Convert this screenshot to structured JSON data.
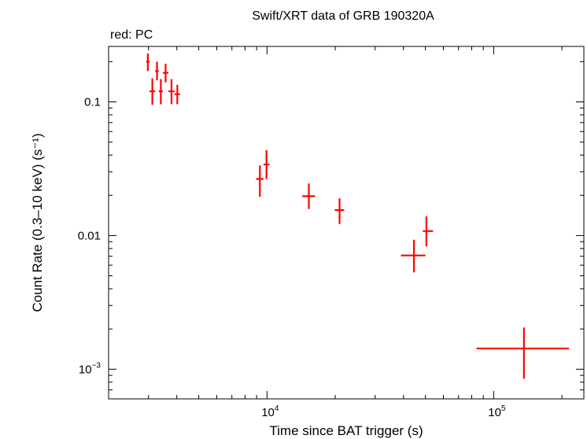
{
  "chart_data": {
    "type": "scatter",
    "title": "Swift/XRT data of GRB 190320A",
    "subtitle": "red: PC",
    "xlabel": "Time since BAT trigger (s)",
    "ylabel": "Count Rate (0.3–10 keV) (s⁻¹)",
    "x_scale": "log",
    "y_scale": "log",
    "xlim": [
      2000,
      250000
    ],
    "ylim": [
      0.0006,
      0.26
    ],
    "x_major_ticks": [
      10000,
      100000
    ],
    "x_tick_labels": [
      "10^4",
      "10^5"
    ],
    "y_major_ticks": [
      0.001,
      0.01,
      0.1
    ],
    "y_tick_labels": [
      "10^-3",
      "0.01",
      "0.1"
    ],
    "grid": false,
    "series": [
      {
        "color": "#ff0000",
        "points": [
          {
            "x": 2980,
            "xlo": 2930,
            "xhi": 3030,
            "y": 0.2,
            "ylo": 0.17,
            "yhi": 0.23
          },
          {
            "x": 3120,
            "xlo": 3030,
            "xhi": 3210,
            "y": 0.12,
            "ylo": 0.095,
            "yhi": 0.15
          },
          {
            "x": 3270,
            "xlo": 3210,
            "xhi": 3330,
            "y": 0.17,
            "ylo": 0.145,
            "yhi": 0.2
          },
          {
            "x": 3400,
            "xlo": 3330,
            "xhi": 3470,
            "y": 0.12,
            "ylo": 0.096,
            "yhi": 0.148
          },
          {
            "x": 3570,
            "xlo": 3470,
            "xhi": 3670,
            "y": 0.165,
            "ylo": 0.14,
            "yhi": 0.193
          },
          {
            "x": 3790,
            "xlo": 3670,
            "xhi": 3910,
            "y": 0.12,
            "ylo": 0.096,
            "yhi": 0.148
          },
          {
            "x": 4020,
            "xlo": 3910,
            "xhi": 4130,
            "y": 0.114,
            "ylo": 0.096,
            "yhi": 0.134
          },
          {
            "x": 9300,
            "xlo": 8950,
            "xhi": 9650,
            "y": 0.0265,
            "ylo": 0.0195,
            "yhi": 0.0335
          },
          {
            "x": 9950,
            "xlo": 9650,
            "xhi": 10250,
            "y": 0.034,
            "ylo": 0.0265,
            "yhi": 0.0435
          },
          {
            "x": 15300,
            "xlo": 14300,
            "xhi": 16300,
            "y": 0.0197,
            "ylo": 0.0158,
            "yhi": 0.0245
          },
          {
            "x": 20900,
            "xlo": 19900,
            "xhi": 21900,
            "y": 0.0155,
            "ylo": 0.0122,
            "yhi": 0.019
          },
          {
            "x": 44500,
            "xlo": 39000,
            "xhi": 50000,
            "y": 0.0071,
            "ylo": 0.0053,
            "yhi": 0.0093
          },
          {
            "x": 50500,
            "xlo": 48700,
            "xhi": 54000,
            "y": 0.0108,
            "ylo": 0.0083,
            "yhi": 0.0139
          },
          {
            "x": 136000,
            "xlo": 84000,
            "xhi": 215000,
            "y": 0.00143,
            "ylo": 0.00085,
            "yhi": 0.00205
          }
        ]
      }
    ]
  }
}
